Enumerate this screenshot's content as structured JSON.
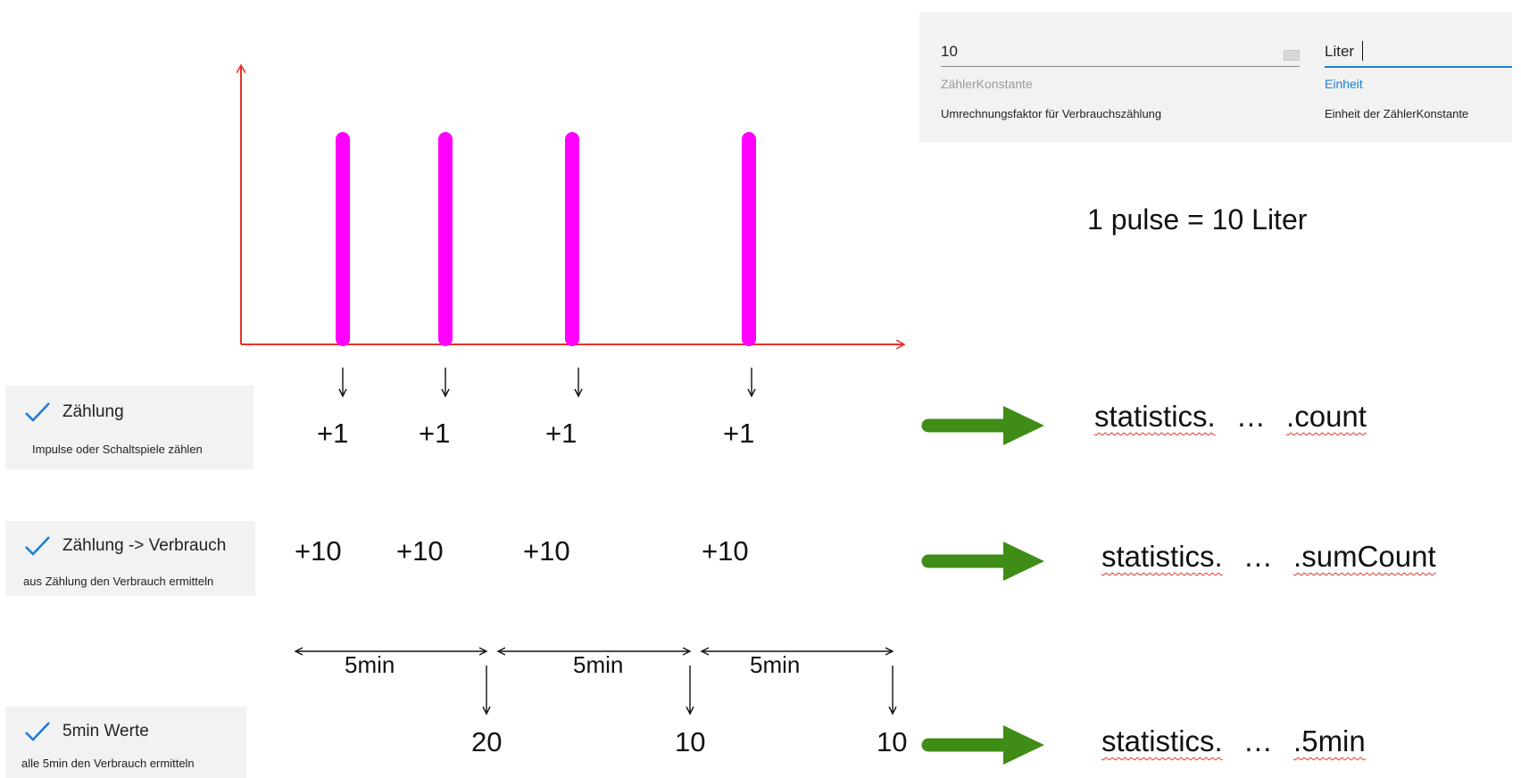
{
  "settings_panel": {
    "factor_field": {
      "value": "10",
      "label": "ZählerKonstante",
      "help": "Umrechnungsfaktor für Verbrauchszählung"
    },
    "unit_field": {
      "value": "Liter",
      "label": "Einheit",
      "help": "Einheit der ZählerKonstante"
    },
    "accent_color": "#1e7fd6"
  },
  "pulse_equation": "1 pulse = 10 Liter",
  "pulse_chart": {
    "pulse_color": "#ff00ff",
    "axis_color": "#e8322b",
    "pulse_count": 4
  },
  "options": [
    {
      "title": "Zählung",
      "description": "Impulse oder Schaltspiele zählen",
      "checked": true
    },
    {
      "title": "Zählung -> Verbrauch",
      "description": "aus Zählung den Verbrauch ermitteln",
      "checked": true
    },
    {
      "title": "5min Werte",
      "description": "alle 5min den Verbrauch ermitteln",
      "checked": true
    }
  ],
  "count_increments": [
    "+1",
    "+1",
    "+1",
    "+1"
  ],
  "consumption_increments": [
    "+10",
    "+10",
    "+10",
    "+10"
  ],
  "intervals": [
    "5min",
    "5min",
    "5min"
  ],
  "interval_sums": [
    "20",
    "10",
    "10"
  ],
  "statistics": [
    {
      "prefix": "statistics.",
      "ellipsis": "…",
      "suffix": ".count"
    },
    {
      "prefix": "statistics.",
      "ellipsis": "…",
      "suffix": ".sumCount"
    },
    {
      "prefix": "statistics.",
      "ellipsis": "…",
      "suffix": ".5min"
    }
  ],
  "colors": {
    "arrow_green": "#3f8c16",
    "check_blue": "#1e7fd6"
  }
}
